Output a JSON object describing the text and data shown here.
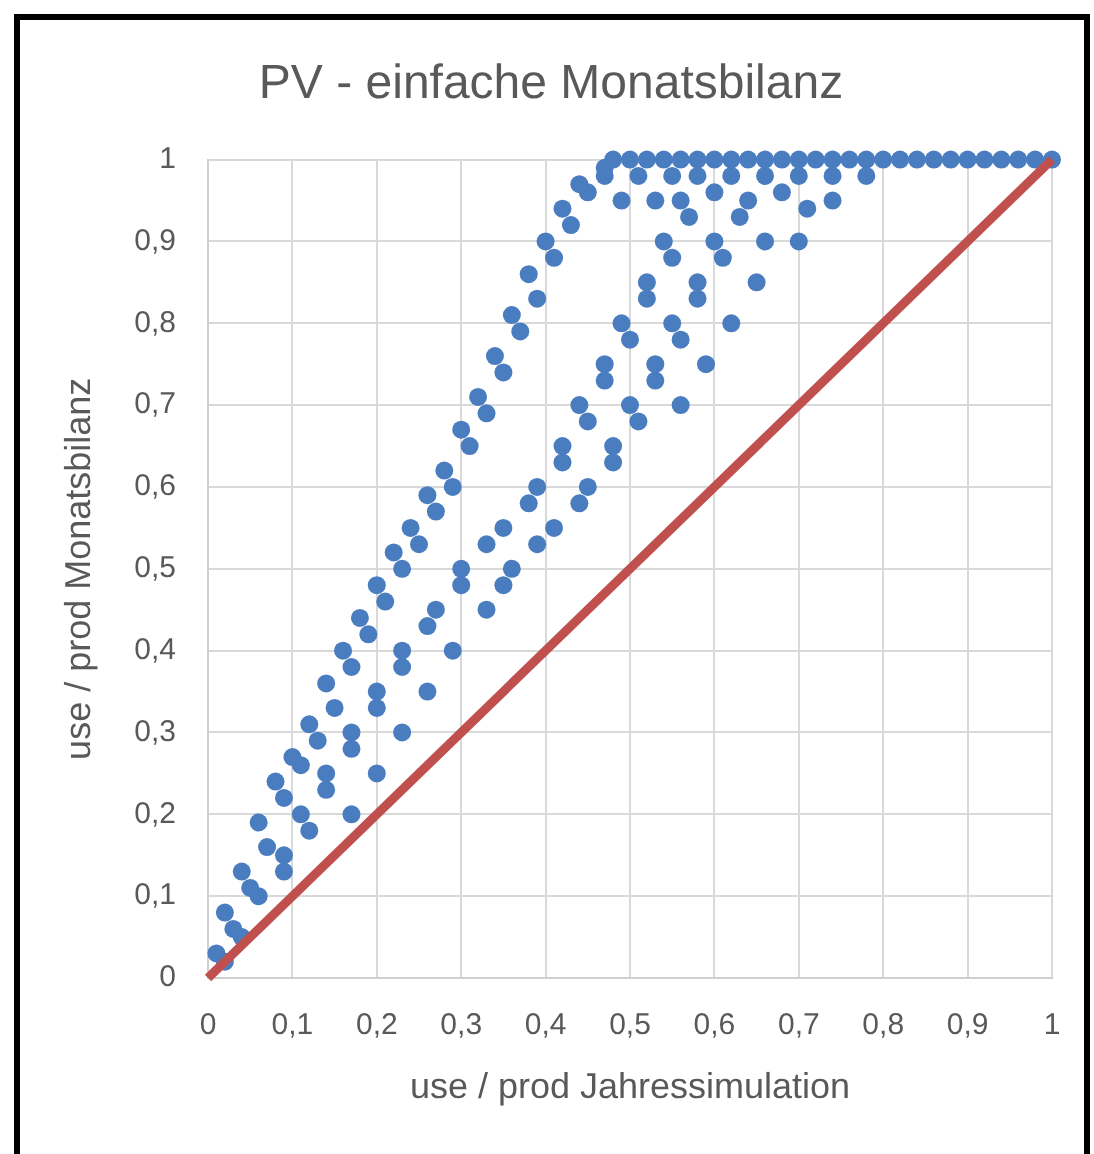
{
  "chart_data": {
    "type": "scatter",
    "title": "PV - einfache Monatsbilanz",
    "xlabel": "use / prod Jahressimulation",
    "ylabel": "use / prod Monatsbilanz",
    "xlim": [
      0,
      1
    ],
    "ylim": [
      0,
      1
    ],
    "xticks": [
      0,
      {
        "value": 0.1,
        "label": "0,1"
      },
      {
        "value": 0.2,
        "label": "0,2"
      },
      {
        "value": 0.3,
        "label": "0,3"
      },
      {
        "value": 0.4,
        "label": "0,4"
      },
      {
        "value": 0.5,
        "label": "0,5"
      },
      {
        "value": 0.6,
        "label": "0,6"
      },
      {
        "value": 0.7,
        "label": "0,7"
      },
      {
        "value": 0.8,
        "label": "0,8"
      },
      {
        "value": 0.9,
        "label": "0,9"
      },
      1
    ],
    "yticks": [
      0,
      {
        "value": 0.1,
        "label": "0,1"
      },
      {
        "value": 0.2,
        "label": "0,2"
      },
      {
        "value": 0.3,
        "label": "0,3"
      },
      {
        "value": 0.4,
        "label": "0,4"
      },
      {
        "value": 0.5,
        "label": "0,5"
      },
      {
        "value": 0.6,
        "label": "0,6"
      },
      {
        "value": 0.7,
        "label": "0,7"
      },
      {
        "value": 0.8,
        "label": "0,8"
      },
      {
        "value": 0.9,
        "label": "0,9"
      },
      1
    ],
    "grid": true,
    "series": [
      {
        "type": "scatter",
        "color": "#4a7dbf",
        "marker": "circle",
        "x": [
          0.01,
          0.03,
          0.02,
          0.05,
          0.04,
          0.07,
          0.06,
          0.09,
          0.08,
          0.11,
          0.1,
          0.13,
          0.12,
          0.15,
          0.14,
          0.17,
          0.16,
          0.19,
          0.18,
          0.21,
          0.2,
          0.23,
          0.22,
          0.25,
          0.24,
          0.27,
          0.26,
          0.29,
          0.28,
          0.31,
          0.3,
          0.33,
          0.32,
          0.35,
          0.34,
          0.37,
          0.36,
          0.39,
          0.38,
          0.41,
          0.4,
          0.43,
          0.42,
          0.45,
          0.44,
          0.47,
          0.02,
          0.04,
          0.06,
          0.09,
          0.09,
          0.12,
          0.11,
          0.14,
          0.17,
          0.14,
          0.17,
          0.2,
          0.17,
          0.2,
          0.23,
          0.2,
          0.23,
          0.26,
          0.23,
          0.26,
          0.29,
          0.27,
          0.3,
          0.33,
          0.35,
          0.3,
          0.33,
          0.36,
          0.39,
          0.35,
          0.38,
          0.41,
          0.44,
          0.39,
          0.42,
          0.45,
          0.48,
          0.42,
          0.45,
          0.48,
          0.51,
          0.44,
          0.47,
          0.5,
          0.53,
          0.56,
          0.47,
          0.5,
          0.53,
          0.56,
          0.59,
          0.49,
          0.52,
          0.55,
          0.58,
          0.62,
          0.52,
          0.55,
          0.58,
          0.61,
          0.65,
          0.54,
          0.57,
          0.6,
          0.63,
          0.66,
          0.7,
          0.49,
          0.53,
          0.56,
          0.6,
          0.64,
          0.68,
          0.71,
          0.74,
          0.47,
          0.51,
          0.55,
          0.58,
          0.62,
          0.66,
          0.7,
          0.74,
          0.78,
          0.48,
          0.5,
          0.52,
          0.54,
          0.56,
          0.58,
          0.6,
          0.62,
          0.64,
          0.66,
          0.68,
          0.7,
          0.72,
          0.74,
          0.76,
          0.78,
          0.8,
          0.82,
          0.84,
          0.86,
          0.88,
          0.9,
          0.92,
          0.94,
          0.96,
          0.98,
          1
        ],
        "values": [
          0.03,
          0.06,
          0.08,
          0.11,
          0.13,
          0.16,
          0.19,
          0.22,
          0.24,
          0.26,
          0.27,
          0.29,
          0.31,
          0.33,
          0.36,
          0.38,
          0.4,
          0.42,
          0.44,
          0.46,
          0.48,
          0.5,
          0.52,
          0.53,
          0.55,
          0.57,
          0.59,
          0.6,
          0.62,
          0.65,
          0.67,
          0.69,
          0.71,
          0.74,
          0.76,
          0.79,
          0.81,
          0.83,
          0.86,
          0.88,
          0.9,
          0.92,
          0.94,
          0.96,
          0.97,
          0.99,
          0.02,
          0.05,
          0.1,
          0.13,
          0.15,
          0.18,
          0.2,
          0.23,
          0.2,
          0.25,
          0.28,
          0.25,
          0.3,
          0.33,
          0.3,
          0.35,
          0.38,
          0.35,
          0.4,
          0.43,
          0.4,
          0.45,
          0.48,
          0.45,
          0.48,
          0.5,
          0.53,
          0.5,
          0.53,
          0.55,
          0.58,
          0.55,
          0.58,
          0.6,
          0.63,
          0.6,
          0.63,
          0.65,
          0.68,
          0.65,
          0.68,
          0.7,
          0.73,
          0.7,
          0.73,
          0.7,
          0.75,
          0.78,
          0.75,
          0.78,
          0.75,
          0.8,
          0.83,
          0.8,
          0.83,
          0.8,
          0.85,
          0.88,
          0.85,
          0.88,
          0.85,
          0.9,
          0.93,
          0.9,
          0.93,
          0.9,
          0.9,
          0.95,
          0.95,
          0.95,
          0.96,
          0.95,
          0.96,
          0.94,
          0.95,
          0.98,
          0.98,
          0.98,
          0.98,
          0.98,
          0.98,
          0.98,
          0.98,
          0.98,
          1,
          1,
          1,
          1,
          1,
          1,
          1,
          1,
          1,
          1,
          1,
          1,
          1,
          1,
          1,
          1,
          1,
          1,
          1,
          1,
          1,
          1,
          1,
          1,
          1,
          1,
          1
        ]
      },
      {
        "type": "line",
        "color": "#c0504d",
        "marker": "none",
        "x": [
          0,
          1
        ],
        "values": [
          0,
          1
        ]
      }
    ]
  }
}
